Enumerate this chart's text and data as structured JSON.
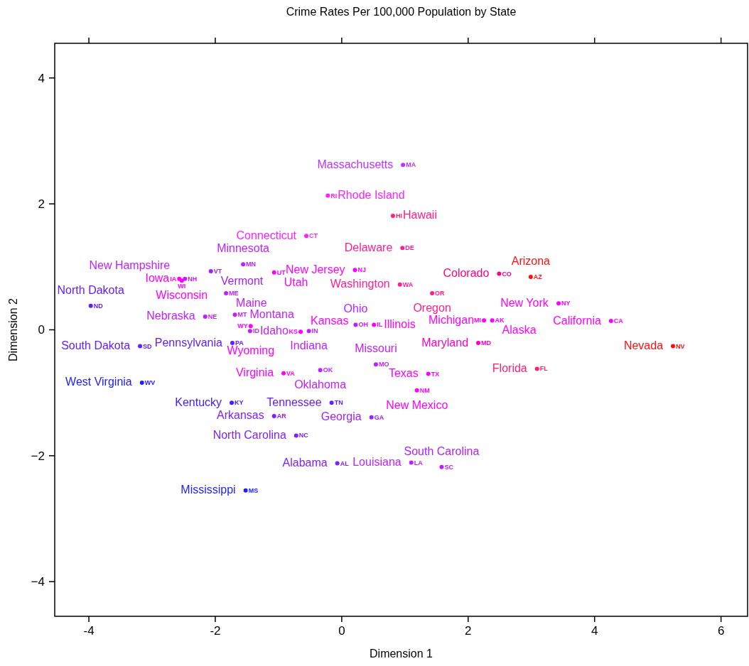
{
  "chart_data": {
    "type": "scatter",
    "title": "Crime Rates Per 100,000 Population by State",
    "xlabel": "Dimension 1",
    "ylabel": "Dimension 2",
    "xlim": [
      -4.54,
      6.42
    ],
    "ylim": [
      -4.55,
      4.55
    ],
    "xticks": [
      -4,
      -2,
      0,
      2,
      4,
      6
    ],
    "yticks": [
      {
        "value": -4,
        "label": "−4"
      },
      {
        "value": -2,
        "label": "−2"
      },
      0,
      2,
      4
    ],
    "marker": "circle",
    "series": [
      {
        "x": [
          0.97,
          -0.22,
          0.81,
          -0.56,
          0.96,
          -1.56,
          0.21,
          -2.57,
          -2.48,
          -2.07,
          -2.53,
          -1.07,
          -3.97,
          -1.83,
          0.92,
          -2.16,
          -1.69,
          -1.45,
          -1.44,
          -0.52,
          -0.65,
          0.22,
          0.51,
          -3.19,
          -1.73,
          -0.92,
          -0.34,
          0.54,
          -3.16,
          -1.74,
          -0.16,
          -1.07,
          0.47,
          -0.72,
          -0.07,
          -1.52,
          2.16,
          5.24,
          1.37,
          3.09,
          1.19,
          1.1,
          1.58,
          2.49,
          2.99,
          1.43,
          3.43,
          2.25,
          2.38,
          4.26
        ],
        "values": [
          2.62,
          2.13,
          1.81,
          1.49,
          1.3,
          1.04,
          0.95,
          0.81,
          0.81,
          0.93,
          0.78,
          0.91,
          0.38,
          0.58,
          0.72,
          0.21,
          0.24,
          -0.02,
          0.06,
          -0.02,
          -0.03,
          0.08,
          0.08,
          -0.26,
          -0.21,
          -0.69,
          -0.64,
          -0.55,
          -0.84,
          -1.16,
          -1.16,
          -1.37,
          -1.39,
          -1.68,
          -2.12,
          -2.55,
          -0.21,
          -0.26,
          -0.7,
          -0.62,
          -0.96,
          -2.11,
          -2.18,
          0.89,
          0.84,
          0.58,
          0.42,
          0.15,
          0.15,
          0.14
        ],
        "value_labels": [
          "MA",
          "RI",
          "HI",
          "CT",
          "DE",
          "MN",
          "NJ",
          "IA",
          "NH",
          "VT",
          "WI",
          "UT",
          "ND",
          "ME",
          "WA",
          "NE",
          "MT",
          "ID",
          "WY",
          "IN",
          "KS",
          "OH",
          "IL",
          "SD",
          "PA",
          "VA",
          "OK",
          "MO",
          "WV",
          "KY",
          "TN",
          "AR",
          "GA",
          "NC",
          "AL",
          "MS",
          "MD",
          "NV",
          "TX",
          "FL",
          "NM",
          "LA",
          "SC",
          "CO",
          "AZ",
          "OR",
          "NY",
          "MI",
          "AK",
          "CA"
        ],
        "colors": [
          "#c030ff",
          "#ff20ff",
          "#ff2080",
          "#ff20ff",
          "#ff2090",
          "#c020ff",
          "#ff00ff",
          "#ff00ff",
          "#c020ff",
          "#a020ff",
          "#ff00ff",
          "#ff00ff",
          "#6020ff",
          "#c020ff",
          "#ff2090",
          "#c020ff",
          "#c020ff",
          "#c020ff",
          "#ff00ff",
          "#c020ff",
          "#ff00ff",
          "#c020ff",
          "#ff00ff",
          "#6020ff",
          "#6020ff",
          "#ff00ff",
          "#c020ff",
          "#c020ff",
          "#2020ff",
          "#4020ff",
          "#6020ff",
          "#8020ff",
          "#a020ff",
          "#8020ff",
          "#8020ff",
          "#2020ff",
          "#ff00c0",
          "#ff1010",
          "#ff00ff",
          "#ff2070",
          "#ff00ff",
          "#c020ff",
          "#b020ff",
          "#ff0080",
          "#ff1010",
          "#ff2080",
          "#ff00ff",
          "#ff00ff",
          "#ff00ff",
          "#ff00ff"
        ]
      }
    ],
    "annotations": [
      {
        "text": "Massachusetts",
        "x": 0.97,
        "y": 2.62
      },
      {
        "text": "Rhode Island",
        "x": -0.22,
        "y": 2.13
      },
      {
        "text": "Hawaii",
        "x": 0.81,
        "y": 1.81
      },
      {
        "text": "Connecticut",
        "x": -0.56,
        "y": 1.49
      },
      {
        "text": "Delaware",
        "x": 0.96,
        "y": 1.3
      },
      {
        "text": "Minnesota",
        "x": -1.56,
        "y": 1.04
      },
      {
        "text": "New Jersey",
        "x": 0.21,
        "y": 0.95
      },
      {
        "text": "Iowa",
        "x": -2.57,
        "y": 0.81
      },
      {
        "text": "New Hampshire",
        "x": -2.48,
        "y": 0.81
      },
      {
        "text": "Vermont",
        "x": -2.07,
        "y": 0.93
      },
      {
        "text": "Wisconsin",
        "x": -2.53,
        "y": 0.78
      },
      {
        "text": "Utah",
        "x": -1.07,
        "y": 0.91
      },
      {
        "text": "North Dakota",
        "x": -3.97,
        "y": 0.38
      },
      {
        "text": "Maine",
        "x": -1.83,
        "y": 0.58
      },
      {
        "text": "Washington",
        "x": 0.92,
        "y": 0.72
      },
      {
        "text": "Nebraska",
        "x": -2.16,
        "y": 0.21
      },
      {
        "text": "Montana",
        "x": -1.69,
        "y": 0.24
      },
      {
        "text": "Idaho",
        "x": -1.45,
        "y": -0.02
      },
      {
        "text": "Wyoming",
        "x": -1.44,
        "y": 0.06
      },
      {
        "text": "Indiana",
        "x": -0.52,
        "y": -0.02
      },
      {
        "text": "Kansas",
        "x": -0.65,
        "y": -0.03
      },
      {
        "text": "Ohio",
        "x": 0.22,
        "y": 0.08
      },
      {
        "text": "Illinois",
        "x": 0.51,
        "y": 0.08
      },
      {
        "text": "South Dakota",
        "x": -3.19,
        "y": -0.26
      },
      {
        "text": "Pennsylvania",
        "x": -1.73,
        "y": -0.21
      },
      {
        "text": "Virginia",
        "x": -0.92,
        "y": -0.69
      },
      {
        "text": "Oklahoma",
        "x": -0.34,
        "y": -0.64
      },
      {
        "text": "Missouri",
        "x": 0.54,
        "y": -0.55
      },
      {
        "text": "West Virginia",
        "x": -3.16,
        "y": -0.84
      },
      {
        "text": "Kentucky",
        "x": -1.74,
        "y": -1.16
      },
      {
        "text": "Tennessee",
        "x": -0.16,
        "y": -1.16
      },
      {
        "text": "Arkansas",
        "x": -1.07,
        "y": -1.37
      },
      {
        "text": "Georgia",
        "x": 0.47,
        "y": -1.39
      },
      {
        "text": "North Carolina",
        "x": -0.72,
        "y": -1.68
      },
      {
        "text": "Alabama",
        "x": -0.07,
        "y": -2.12
      },
      {
        "text": "Mississippi",
        "x": -1.52,
        "y": -2.55
      },
      {
        "text": "Maryland",
        "x": 2.16,
        "y": -0.21
      },
      {
        "text": "Nevada",
        "x": 5.24,
        "y": -0.26
      },
      {
        "text": "Texas",
        "x": 1.37,
        "y": -0.7
      },
      {
        "text": "Florida",
        "x": 3.09,
        "y": -0.62
      },
      {
        "text": "New Mexico",
        "x": 1.19,
        "y": -0.96
      },
      {
        "text": "Louisiana",
        "x": 1.1,
        "y": -2.11
      },
      {
        "text": "South Carolina",
        "x": 1.58,
        "y": -2.18
      },
      {
        "text": "Colorado",
        "x": 2.49,
        "y": 0.89
      },
      {
        "text": "Arizona",
        "x": 2.99,
        "y": 0.84
      },
      {
        "text": "Oregon",
        "x": 1.43,
        "y": 0.58
      },
      {
        "text": "New York",
        "x": 3.43,
        "y": 0.42
      },
      {
        "text": "Michigan",
        "x": 2.25,
        "y": 0.15
      },
      {
        "text": "Alaska",
        "x": 2.38,
        "y": 0.15
      },
      {
        "text": "California",
        "x": 4.26,
        "y": 0.14
      }
    ]
  }
}
